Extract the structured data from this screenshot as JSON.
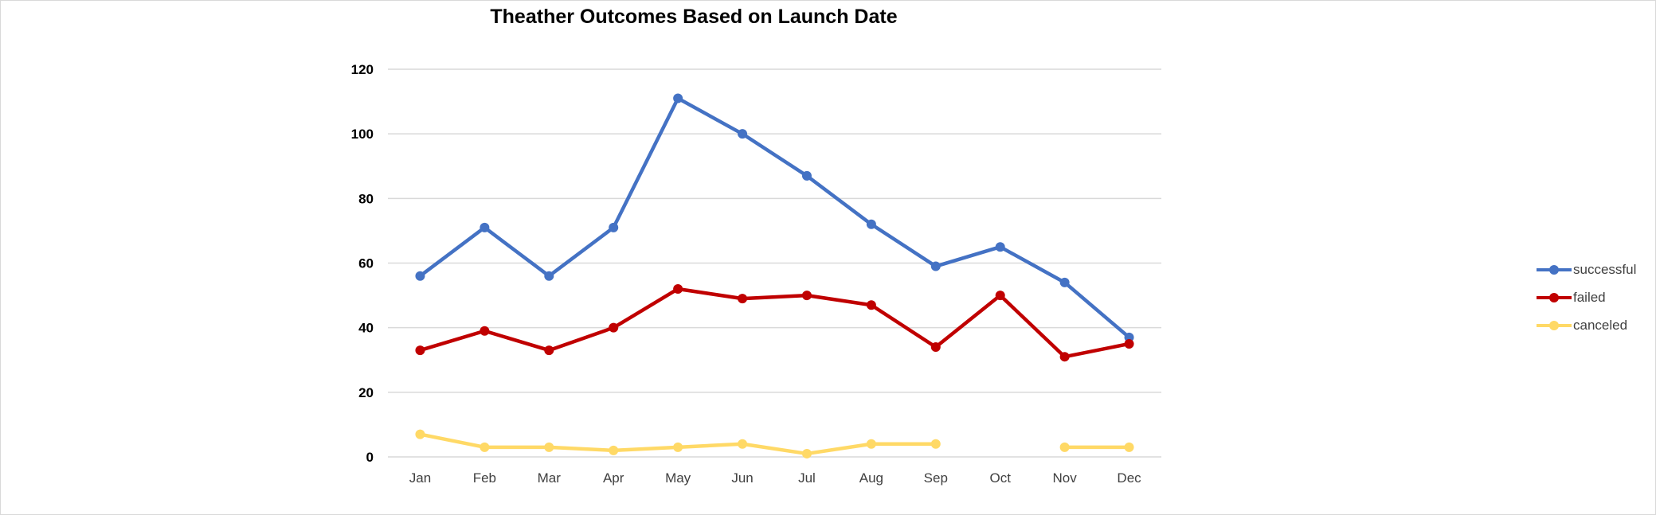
{
  "chart_data": {
    "type": "line",
    "title": "Theather Outcomes Based on Launch Date",
    "xlabel": "",
    "ylabel": "",
    "categories": [
      "Jan",
      "Feb",
      "Mar",
      "Apr",
      "May",
      "Jun",
      "Jul",
      "Aug",
      "Sep",
      "Oct",
      "Nov",
      "Dec"
    ],
    "ylim": [
      0,
      120
    ],
    "yticks": [
      0,
      20,
      40,
      60,
      80,
      100,
      120
    ],
    "grid": true,
    "legend_position": "right",
    "series": [
      {
        "name": "successful",
        "color": "#4472C4",
        "values": [
          56,
          71,
          56,
          71,
          111,
          100,
          87,
          72,
          59,
          65,
          54,
          37
        ]
      },
      {
        "name": "failed",
        "color": "#C00000",
        "values": [
          33,
          39,
          33,
          40,
          52,
          49,
          50,
          47,
          34,
          50,
          31,
          35
        ]
      },
      {
        "name": "canceled",
        "color": "#FFD966",
        "values": [
          7,
          3,
          3,
          2,
          3,
          4,
          1,
          4,
          4,
          null,
          3,
          3
        ]
      }
    ]
  }
}
